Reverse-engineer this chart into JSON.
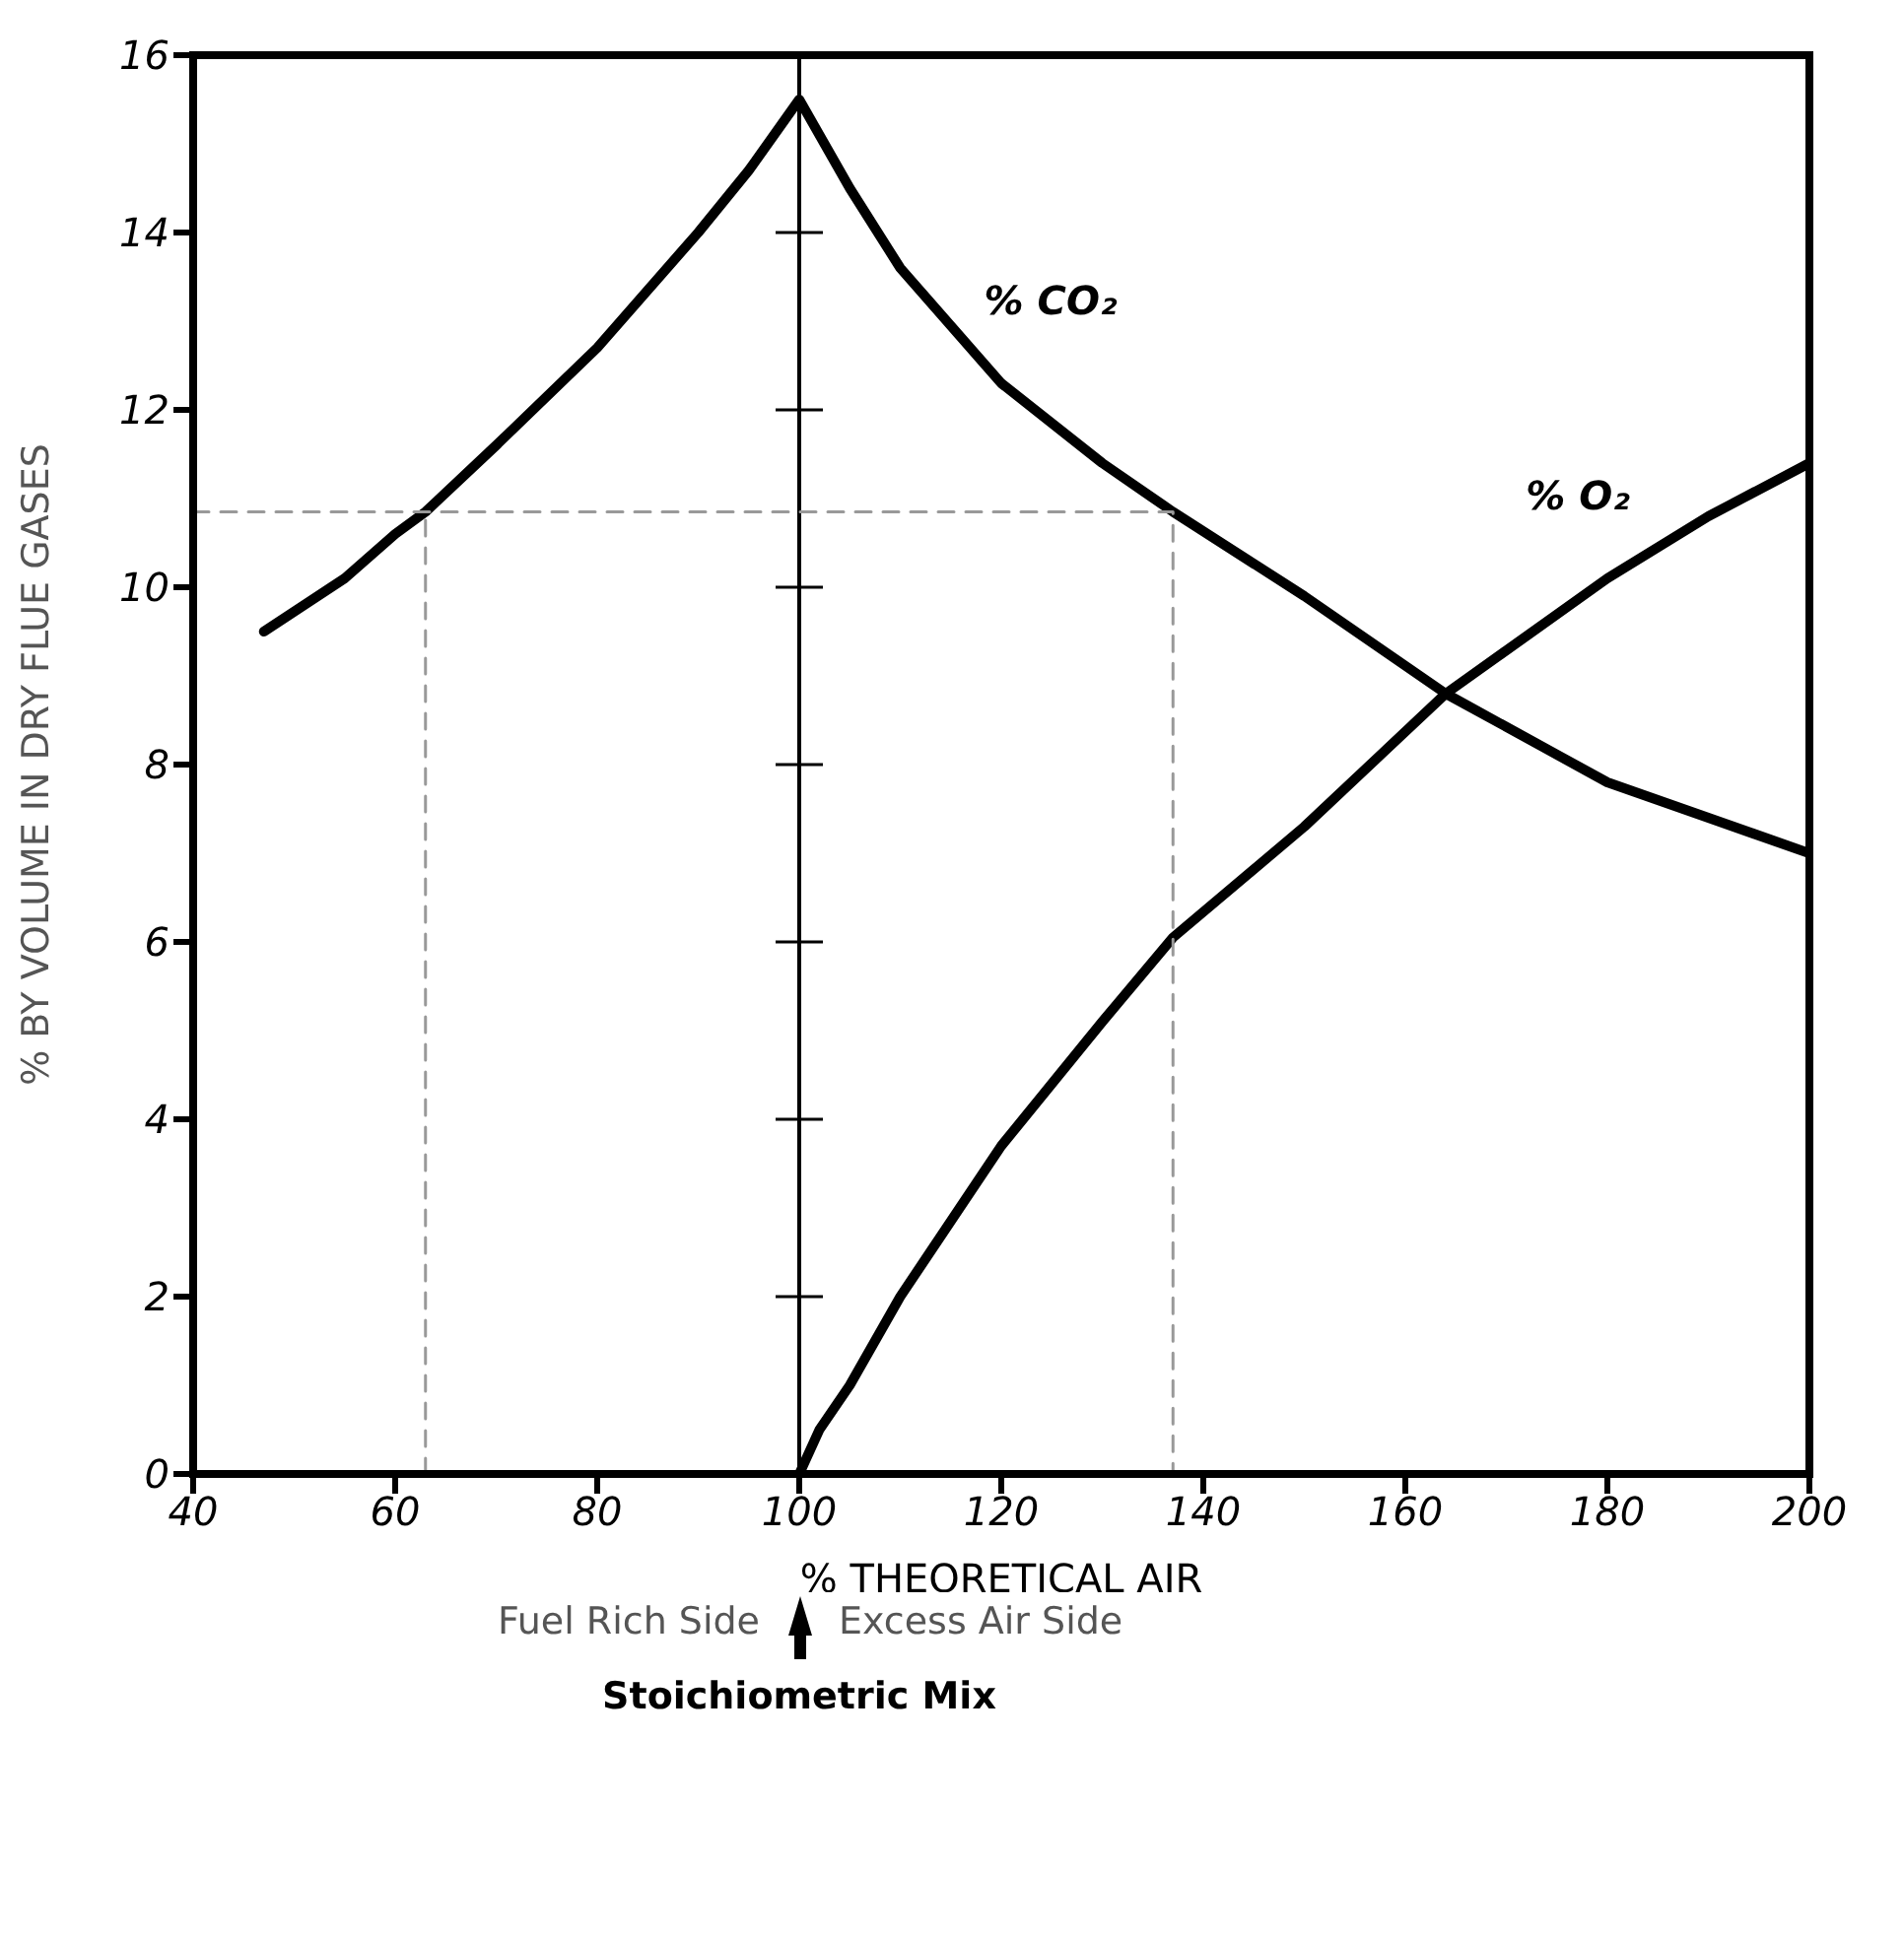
{
  "chart_data": {
    "type": "line",
    "xlabel": "% THEORETICAL AIR",
    "ylabel": "% BY VOLUME IN DRY FLUE GASES",
    "xlim": [
      40,
      200
    ],
    "ylim": [
      0,
      16
    ],
    "xticks": [
      40,
      60,
      80,
      100,
      120,
      140,
      160,
      180,
      200
    ],
    "yticks": [
      0,
      2,
      4,
      6,
      8,
      10,
      12,
      14,
      16
    ],
    "grid": false,
    "marker": "none",
    "line_style": "solid",
    "series": [
      {
        "name": "% CO₂",
        "color": "#000000",
        "x": [
          47,
          55,
          60,
          63,
          70,
          80,
          90,
          95,
          100,
          105,
          110,
          120,
          130,
          137,
          150,
          164,
          180,
          190,
          200
        ],
        "values": [
          9.5,
          10.1,
          10.6,
          10.85,
          11.6,
          12.7,
          14.0,
          14.7,
          15.5,
          14.5,
          13.6,
          12.3,
          11.4,
          10.85,
          9.9,
          8.8,
          7.8,
          7.4,
          7.0
        ]
      },
      {
        "name": "% O₂",
        "color": "#000000",
        "x": [
          100,
          102,
          105,
          110,
          120,
          130,
          137,
          150,
          164,
          180,
          190,
          200
        ],
        "values": [
          0,
          0.5,
          1.0,
          2.0,
          3.7,
          5.1,
          6.05,
          7.3,
          8.8,
          10.1,
          10.8,
          11.4
        ]
      },
      {
        "color": "#999999",
        "line_style": "dashed",
        "x": [
          40,
          137,
          137
        ],
        "values": [
          10.85,
          10.85,
          0
        ]
      },
      {
        "color": "#999999",
        "line_style": "dashed",
        "x": [
          63,
          63
        ],
        "values": [
          0,
          10.85
        ]
      }
    ],
    "ref_lines": [
      {
        "axis": "x",
        "value": 100,
        "color": "#000000"
      }
    ],
    "annotations": [
      "Fuel Rich Side",
      "Excess Air Side",
      "Stoichiometric Mix"
    ]
  }
}
